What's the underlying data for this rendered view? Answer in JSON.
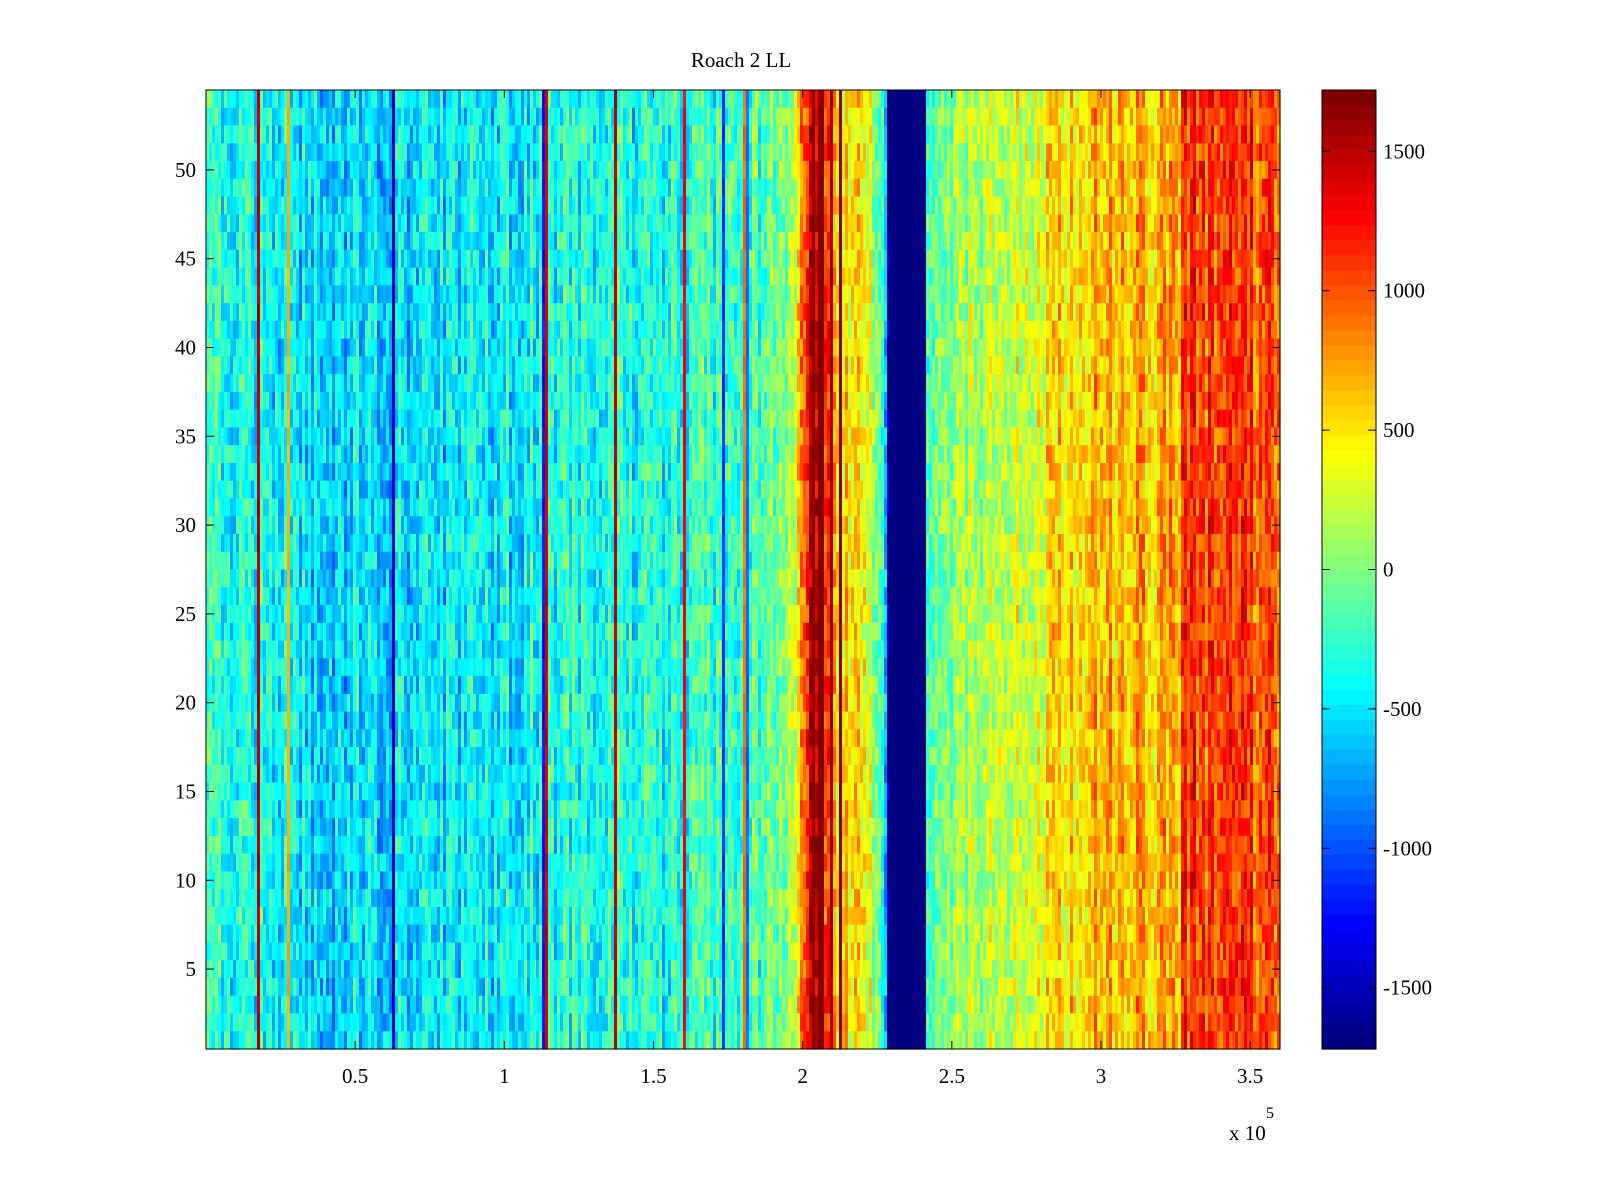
{
  "chart_data": {
    "type": "heatmap",
    "title": "Roach 2 LL",
    "xlabel": "",
    "ylabel": "",
    "x_multiplier_label": "x 10",
    "x_multiplier_exponent": "5",
    "xlim": [
      0,
      360000
    ],
    "ylim": [
      0.5,
      54.5
    ],
    "x_ticks": [
      50000,
      100000,
      150000,
      200000,
      250000,
      300000,
      350000
    ],
    "x_tick_labels": [
      "0.5",
      "1",
      "1.5",
      "2",
      "2.5",
      "3",
      "3.5"
    ],
    "y_ticks": [
      5,
      10,
      15,
      20,
      25,
      30,
      35,
      40,
      45,
      50
    ],
    "y_tick_labels": [
      "5",
      "10",
      "15",
      "20",
      "25",
      "30",
      "35",
      "40",
      "45",
      "50"
    ],
    "rows": 54,
    "colormap": "jet",
    "clim": [
      -1720,
      1720
    ],
    "colorbar_ticks": [
      1500,
      1000,
      500,
      0,
      -500,
      -1000,
      -1500
    ],
    "colorbar_tick_labels": [
      "1500",
      "1000",
      "500",
      "0",
      "-500",
      "-1000",
      "-1500"
    ],
    "column_profile": [
      {
        "x": 0,
        "value": -250
      },
      {
        "x": 40000,
        "value": -550
      },
      {
        "x": 80000,
        "value": -500
      },
      {
        "x": 120000,
        "value": -350
      },
      {
        "x": 160000,
        "value": -300
      },
      {
        "x": 195000,
        "value": -100
      },
      {
        "x": 203000,
        "value": 1500
      },
      {
        "x": 212000,
        "value": 600
      },
      {
        "x": 222000,
        "value": 400
      },
      {
        "x": 228000,
        "value": -600
      },
      {
        "x": 229000,
        "value": -1720
      },
      {
        "x": 241000,
        "value": -1720
      },
      {
        "x": 242000,
        "value": 0
      },
      {
        "x": 270000,
        "value": 300
      },
      {
        "x": 300000,
        "value": 700
      },
      {
        "x": 326000,
        "value": 650
      },
      {
        "x": 328000,
        "value": 1100
      },
      {
        "x": 360000,
        "value": 1000
      }
    ],
    "stripes": [
      {
        "x": 18000,
        "value": 1500
      },
      {
        "x": 28000,
        "value": 700
      },
      {
        "x": 63000,
        "value": -1500
      },
      {
        "x": 113000,
        "value": -1200
      },
      {
        "x": 114000,
        "value": 1400
      },
      {
        "x": 137000,
        "value": 1500
      },
      {
        "x": 160000,
        "value": 1300
      },
      {
        "x": 173000,
        "value": -1100
      },
      {
        "x": 180000,
        "value": 900
      },
      {
        "x": 181500,
        "value": -900
      },
      {
        "x": 204000,
        "value": 1720
      },
      {
        "x": 206000,
        "value": 1720
      },
      {
        "x": 207000,
        "value": 1720
      },
      {
        "x": 210000,
        "value": 1600
      },
      {
        "x": 213000,
        "value": 1700
      }
    ]
  },
  "colors": {
    "background": "#ffffff",
    "axes": "#000000"
  }
}
